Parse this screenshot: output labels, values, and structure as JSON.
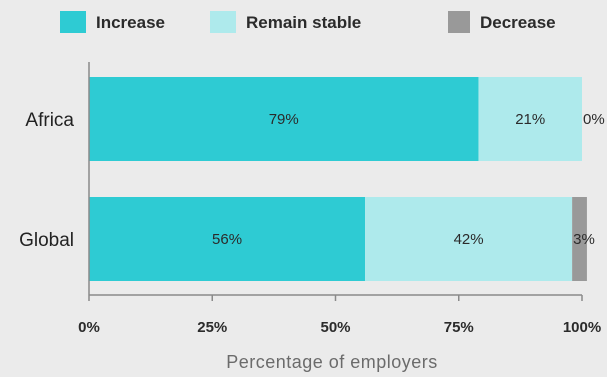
{
  "chart_data": {
    "type": "bar",
    "orientation": "horizontal",
    "stacked": true,
    "categories": [
      "Africa",
      "Global"
    ],
    "series": [
      {
        "name": "Increase",
        "values": [
          79,
          56
        ],
        "color": "#2ecbd3",
        "labels": [
          "79%",
          "56%"
        ]
      },
      {
        "name": "Remain stable",
        "values": [
          21,
          42
        ],
        "color": "#aeeaec",
        "labels": [
          "21%",
          "42%"
        ]
      },
      {
        "name": "Decrease",
        "values": [
          0,
          3
        ],
        "color": "#999999",
        "labels": [
          "0%",
          "3%"
        ]
      }
    ],
    "xlabel": "Percentage of employers",
    "ylabel": "",
    "xlim": [
      0,
      100
    ],
    "xticks": [
      0,
      25,
      50,
      75,
      100
    ],
    "xtick_labels": [
      "0%",
      "25%",
      "50%",
      "75%",
      "100%"
    ],
    "legend_position": "top",
    "grid": false
  }
}
